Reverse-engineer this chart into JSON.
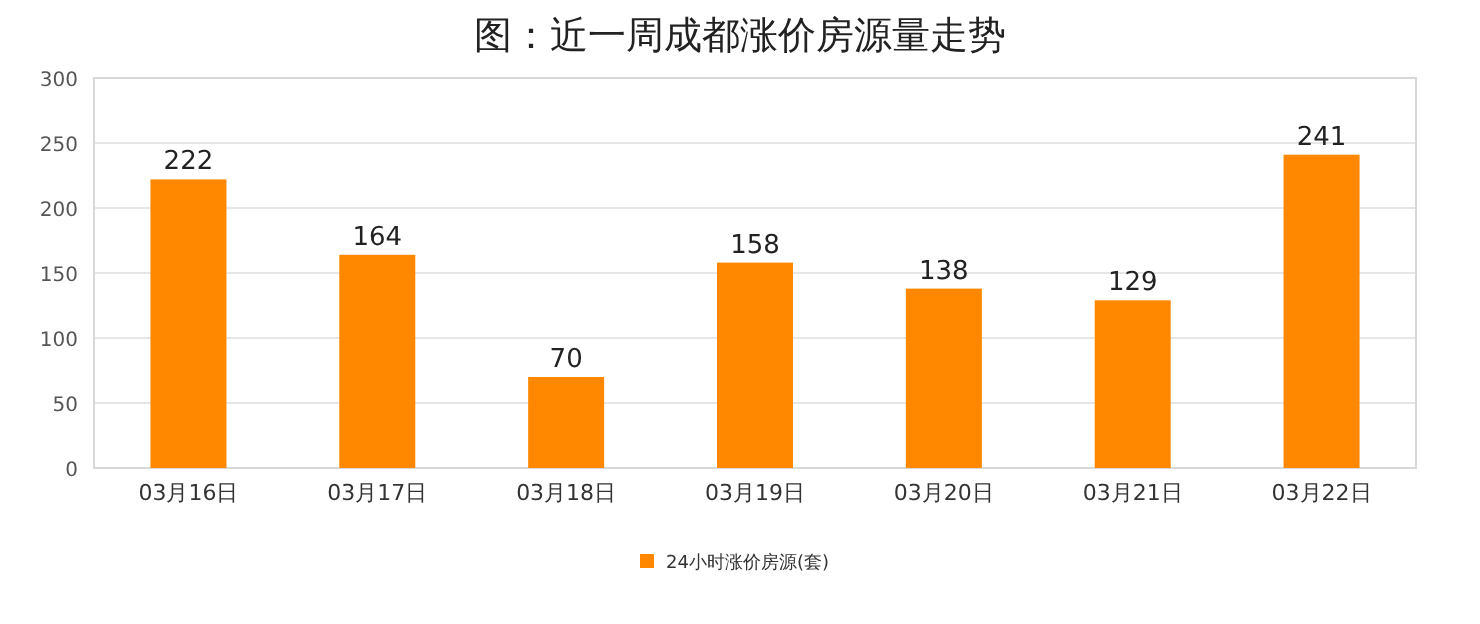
{
  "chart_data": {
    "type": "bar",
    "title": "图：近一周成都涨价房源量走势",
    "categories": [
      "03月16日",
      "03月17日",
      "03月18日",
      "03月19日",
      "03月20日",
      "03月21日",
      "03月22日"
    ],
    "series": [
      {
        "name": "24小时涨价房源(套)",
        "color": "#ff8800",
        "values": [
          222,
          164,
          70,
          158,
          138,
          129,
          241
        ]
      }
    ],
    "ylim": [
      0,
      300
    ],
    "yticks": [
      0,
      50,
      100,
      150,
      200,
      250,
      300
    ],
    "grid": "y",
    "legend": "bottom",
    "data_labels": true
  }
}
